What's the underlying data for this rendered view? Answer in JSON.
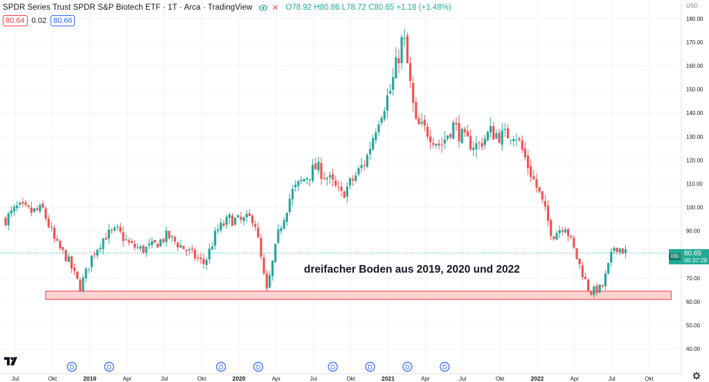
{
  "header": {
    "title": "SPDR Series Trust SPDR S&P Biotech ETF · 1T · Arca · TradingView",
    "ohlc": "O78.92 H80.86 L78.72 C80.65 +1.18 (+1.48%)",
    "sell_price": "80.64",
    "spread": "0.02",
    "buy_price": "80.66"
  },
  "price_scale": {
    "currency": "USD",
    "ticks": [
      40,
      50,
      60,
      70,
      80,
      90,
      100,
      110,
      120,
      130,
      140,
      150,
      160,
      170,
      180
    ]
  },
  "last_price": {
    "symbol": "XBI",
    "value": "80.65",
    "countdown": "05:37:29"
  },
  "annotation": "dreifacher Boden aus 2019, 2020 und 2022",
  "support_zone": {
    "low": 61,
    "high": 64.5,
    "from": "2018-10",
    "to": "2022-11"
  },
  "time_axis": [
    "Jul",
    "Okt",
    "2019",
    "Apr",
    "Jul",
    "Okt",
    "2020",
    "Apr",
    "Jul",
    "Okt",
    "2021",
    "Apr",
    "Jul",
    "Okt",
    "2022",
    "Apr",
    "Jul",
    "Okt"
  ],
  "dividend_marker": "D",
  "colors": {
    "up": "#26a69a",
    "down": "#ef5350",
    "zone_fill": "#f8c4c4",
    "zone_border": "#f23645",
    "last_price": "#22ab94"
  },
  "chart_data": {
    "type": "candlestick",
    "title": "SPDR Series Trust SPDR S&P Biotech ETF",
    "interval": "1T",
    "x_range": [
      "2018-06",
      "2022-11"
    ],
    "ylim": [
      35,
      185
    ],
    "close_path": [
      [
        "2018-06",
        95
      ],
      [
        "2018-07",
        100
      ],
      [
        "2018-08",
        98
      ],
      [
        "2018-09",
        99
      ],
      [
        "2018-10",
        85
      ],
      [
        "2018-11",
        78
      ],
      [
        "2018-12",
        66
      ],
      [
        "2019-01",
        80
      ],
      [
        "2019-02",
        88
      ],
      [
        "2019-03",
        90
      ],
      [
        "2019-04",
        84
      ],
      [
        "2019-05",
        82
      ],
      [
        "2019-06",
        84
      ],
      [
        "2019-07",
        88
      ],
      [
        "2019-08",
        84
      ],
      [
        "2019-09",
        80
      ],
      [
        "2019-10",
        76
      ],
      [
        "2019-11",
        90
      ],
      [
        "2019-12",
        95
      ],
      [
        "2020-01",
        94
      ],
      [
        "2020-02",
        96
      ],
      [
        "2020-03",
        64
      ],
      [
        "2020-04",
        90
      ],
      [
        "2020-05",
        106
      ],
      [
        "2020-06",
        112
      ],
      [
        "2020-07",
        117
      ],
      [
        "2020-08",
        112
      ],
      [
        "2020-09",
        105
      ],
      [
        "2020-10",
        112
      ],
      [
        "2020-11",
        120
      ],
      [
        "2020-12",
        138
      ],
      [
        "2021-01",
        150
      ],
      [
        "2021-02",
        173
      ],
      [
        "2021-03",
        135
      ],
      [
        "2021-04",
        132
      ],
      [
        "2021-05",
        126
      ],
      [
        "2021-06",
        135
      ],
      [
        "2021-07",
        128
      ],
      [
        "2021-08",
        126
      ],
      [
        "2021-09",
        132
      ],
      [
        "2021-10",
        130
      ],
      [
        "2021-11",
        132
      ],
      [
        "2021-12",
        118
      ],
      [
        "2022-01",
        105
      ],
      [
        "2022-02",
        88
      ],
      [
        "2022-03",
        93
      ],
      [
        "2022-04",
        78
      ],
      [
        "2022-05",
        64
      ],
      [
        "2022-06",
        66
      ],
      [
        "2022-07",
        84
      ],
      [
        "2022-08",
        80.65
      ]
    ],
    "dividends": [
      "2018-12",
      "2019-03",
      "2019-12",
      "2020-03",
      "2020-09",
      "2020-12",
      "2021-03",
      "2021-06"
    ]
  }
}
